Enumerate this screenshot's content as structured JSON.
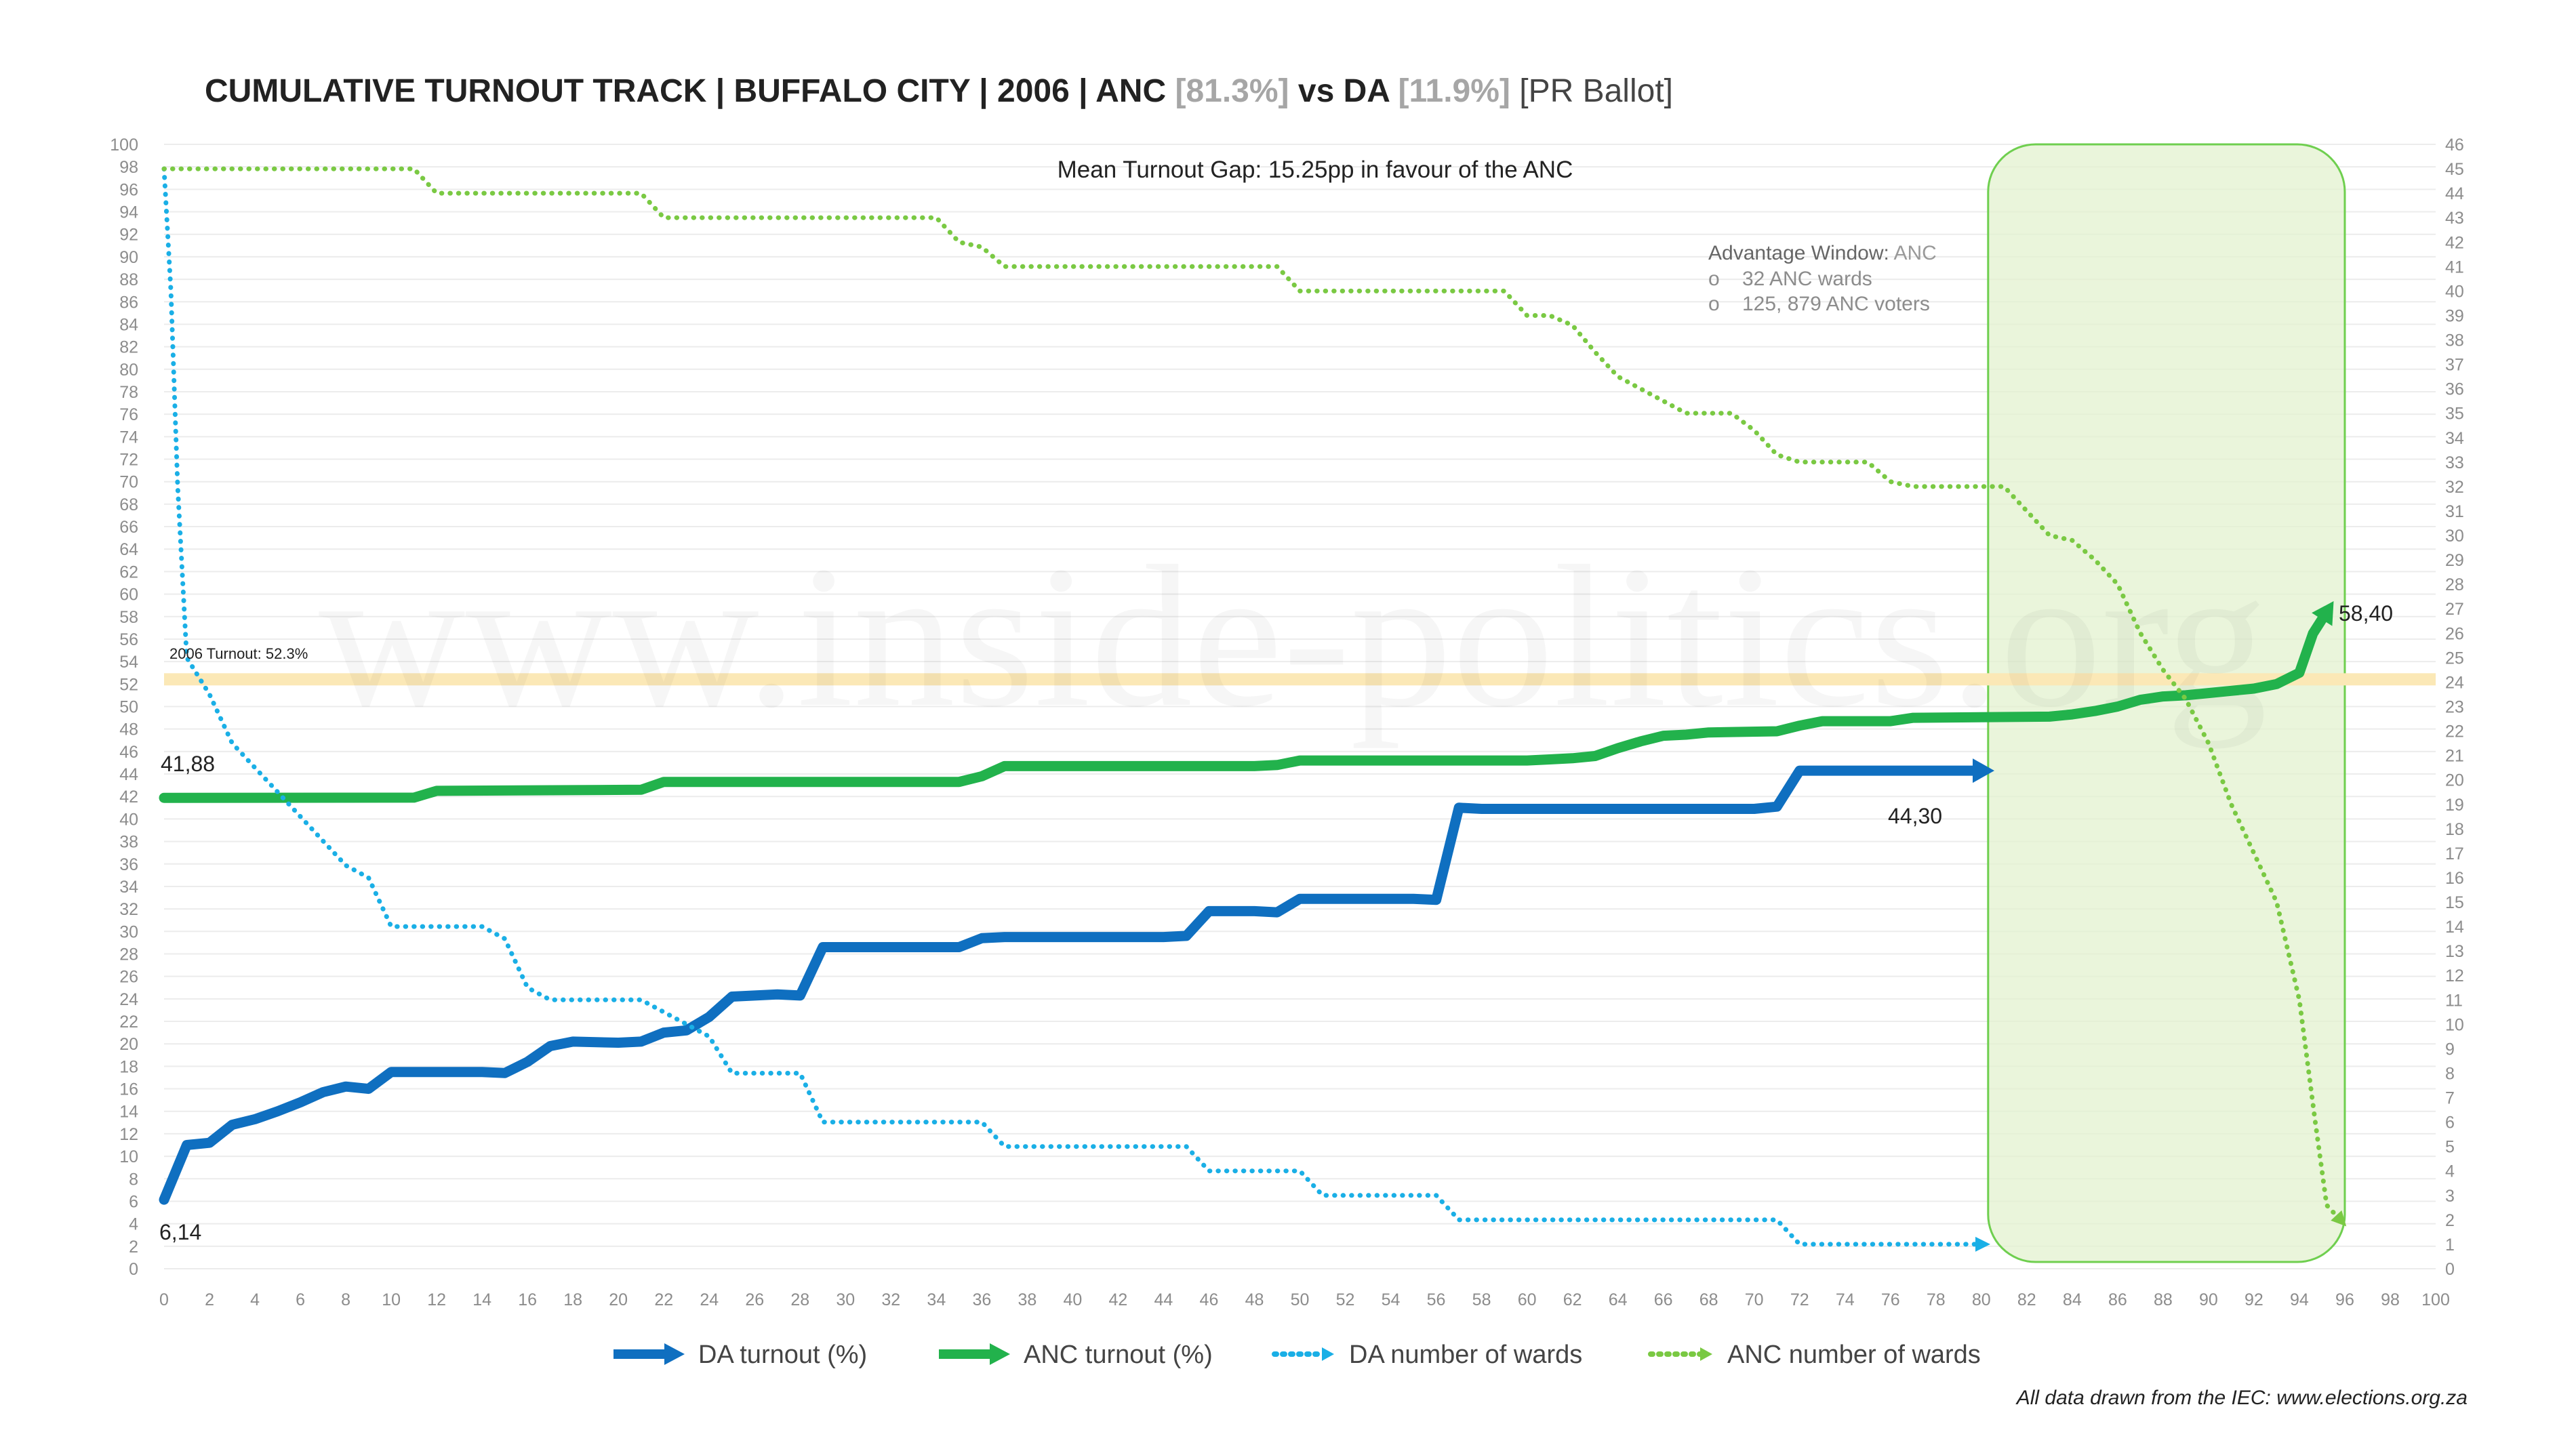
{
  "chart_data": {
    "type": "line",
    "title": {
      "main": "CUMULATIVE TURNOUT TRACK | BUFFALO CITY | 2006 | ANC ",
      "anc_pct": "[81.3%]",
      "vs": " vs DA ",
      "da_pct": "[11.9%]",
      "suffix": " [PR Ballot]"
    },
    "x_ticks": [
      0,
      2,
      4,
      6,
      8,
      10,
      12,
      14,
      16,
      18,
      20,
      22,
      24,
      26,
      28,
      30,
      32,
      34,
      36,
      38,
      40,
      42,
      44,
      46,
      48,
      50,
      52,
      54,
      56,
      58,
      60,
      62,
      64,
      66,
      68,
      70,
      72,
      74,
      76,
      78,
      80,
      82,
      84,
      86,
      88,
      90,
      92,
      94,
      96,
      98,
      100
    ],
    "xlim": [
      0,
      100
    ],
    "ylim_left": [
      0,
      100
    ],
    "ylim_right": [
      0,
      46
    ],
    "left_tick_step": 2,
    "right_tick_step": 1,
    "grid": true,
    "legend_position": "bottom",
    "subtitle": "Mean Turnout Gap: 15.25pp in favour of the ANC",
    "reference_line": {
      "value": 52.3,
      "label": "2006 Turnout: 52.3%"
    },
    "advantage_window": {
      "x_range": [
        80,
        96
      ],
      "heading": "Advantage Window:",
      "party": " ANC",
      "bullets": [
        "32 ANC wards",
        "125, 879 ANC voters"
      ]
    },
    "data_labels": {
      "da_start": "6,14",
      "da_end": "44,30",
      "anc_start": "41,88",
      "anc_end": "58,40"
    },
    "series": [
      {
        "name": "DA turnout (%)",
        "axis": "left",
        "style": "solid",
        "color": "#0f6fc0",
        "points": [
          [
            0,
            6.14
          ],
          [
            1,
            11
          ],
          [
            2,
            11.2
          ],
          [
            3,
            12.8
          ],
          [
            4,
            13.3
          ],
          [
            5,
            14
          ],
          [
            6,
            14.8
          ],
          [
            7,
            15.7
          ],
          [
            8,
            16.2
          ],
          [
            9,
            16
          ],
          [
            10,
            17.5
          ],
          [
            11,
            17.5
          ],
          [
            12,
            17.5
          ],
          [
            14,
            17.5
          ],
          [
            15,
            17.4
          ],
          [
            16,
            18.4
          ],
          [
            17,
            19.8
          ],
          [
            18,
            20.2
          ],
          [
            20,
            20.1
          ],
          [
            21,
            20.2
          ],
          [
            22,
            21
          ],
          [
            23,
            21.2
          ],
          [
            24,
            22.4
          ],
          [
            25,
            24.2
          ],
          [
            26,
            24.3
          ],
          [
            27,
            24.4
          ],
          [
            28,
            24.3
          ],
          [
            29,
            28.6
          ],
          [
            30,
            28.6
          ],
          [
            32,
            28.6
          ],
          [
            35,
            28.6
          ],
          [
            36,
            29.4
          ],
          [
            37,
            29.5
          ],
          [
            44,
            29.5
          ],
          [
            45,
            29.6
          ],
          [
            46,
            31.8
          ],
          [
            48,
            31.8
          ],
          [
            49,
            31.7
          ],
          [
            50,
            32.9
          ],
          [
            52,
            32.9
          ],
          [
            55,
            32.9
          ],
          [
            56,
            32.8
          ],
          [
            57,
            41
          ],
          [
            58,
            40.9
          ],
          [
            70,
            40.9
          ],
          [
            71,
            41.1
          ],
          [
            72,
            44.3
          ],
          [
            80,
            44.3
          ]
        ]
      },
      {
        "name": "ANC turnout (%)",
        "axis": "left",
        "style": "solid",
        "color": "#22b24c",
        "points": [
          [
            0,
            41.88
          ],
          [
            11,
            41.9
          ],
          [
            12,
            42.5
          ],
          [
            21,
            42.6
          ],
          [
            22,
            43.3
          ],
          [
            35,
            43.3
          ],
          [
            36,
            43.8
          ],
          [
            37,
            44.7
          ],
          [
            48,
            44.7
          ],
          [
            49,
            44.8
          ],
          [
            50,
            45.2
          ],
          [
            60,
            45.2
          ],
          [
            61,
            45.3
          ],
          [
            62,
            45.4
          ],
          [
            63,
            45.6
          ],
          [
            64,
            46.3
          ],
          [
            65,
            46.9
          ],
          [
            66,
            47.4
          ],
          [
            67,
            47.5
          ],
          [
            68,
            47.7
          ],
          [
            71,
            47.8
          ],
          [
            72,
            48.3
          ],
          [
            73,
            48.7
          ],
          [
            76,
            48.7
          ],
          [
            77,
            49
          ],
          [
            83,
            49.1
          ],
          [
            84,
            49.3
          ],
          [
            85,
            49.6
          ],
          [
            86,
            50
          ],
          [
            87,
            50.6
          ],
          [
            88,
            50.9
          ],
          [
            89,
            51
          ],
          [
            90,
            51.2
          ],
          [
            91,
            51.4
          ],
          [
            92,
            51.6
          ],
          [
            93,
            52
          ],
          [
            94,
            53
          ],
          [
            94.6,
            56.5
          ],
          [
            95.2,
            58.4
          ]
        ]
      },
      {
        "name": "DA number of wards",
        "axis": "right",
        "style": "dotted",
        "color": "#1aafe6",
        "points": [
          [
            0,
            45
          ],
          [
            0.3,
            40
          ],
          [
            0.6,
            32
          ],
          [
            1,
            25
          ],
          [
            2,
            23.5
          ],
          [
            3,
            21.5
          ],
          [
            4,
            20.5
          ],
          [
            5,
            19.5
          ],
          [
            6,
            18.5
          ],
          [
            7,
            17.5
          ],
          [
            8,
            16.5
          ],
          [
            9,
            16
          ],
          [
            10,
            14
          ],
          [
            12,
            14
          ],
          [
            14,
            14
          ],
          [
            15,
            13.5
          ],
          [
            16,
            11.5
          ],
          [
            17,
            11
          ],
          [
            21,
            11
          ],
          [
            22,
            10.5
          ],
          [
            23,
            10
          ],
          [
            24,
            9.5
          ],
          [
            25,
            8
          ],
          [
            28,
            8
          ],
          [
            29,
            6
          ],
          [
            36,
            6
          ],
          [
            37,
            5
          ],
          [
            45,
            5
          ],
          [
            46,
            4
          ],
          [
            50,
            4
          ],
          [
            51,
            3
          ],
          [
            56,
            3
          ],
          [
            57,
            2
          ],
          [
            70,
            2
          ],
          [
            71,
            2
          ],
          [
            72,
            1
          ],
          [
            80,
            1
          ]
        ]
      },
      {
        "name": "ANC number of wards",
        "axis": "right",
        "style": "dotted",
        "color": "#7ac943",
        "points": [
          [
            0,
            45
          ],
          [
            11,
            45
          ],
          [
            12,
            44
          ],
          [
            21,
            44
          ],
          [
            22,
            43
          ],
          [
            34,
            43
          ],
          [
            35,
            42
          ],
          [
            36,
            41.8
          ],
          [
            37,
            41
          ],
          [
            49,
            41
          ],
          [
            50,
            40
          ],
          [
            59,
            40
          ],
          [
            60,
            39
          ],
          [
            61,
            39
          ],
          [
            62,
            38.6
          ],
          [
            63,
            37.5
          ],
          [
            64,
            36.5
          ],
          [
            65,
            36
          ],
          [
            66,
            35.5
          ],
          [
            67,
            35
          ],
          [
            69,
            35
          ],
          [
            70,
            34.3
          ],
          [
            71,
            33.3
          ],
          [
            72,
            33
          ],
          [
            75,
            33
          ],
          [
            76,
            32.2
          ],
          [
            77,
            32
          ],
          [
            81,
            32
          ],
          [
            82,
            31
          ],
          [
            83,
            30
          ],
          [
            84,
            29.8
          ],
          [
            85,
            29
          ],
          [
            86,
            28
          ],
          [
            87,
            26
          ],
          [
            88,
            24.5
          ],
          [
            89,
            23.3
          ],
          [
            90,
            21.5
          ],
          [
            91,
            19
          ],
          [
            92,
            17
          ],
          [
            93,
            15
          ],
          [
            94,
            11
          ],
          [
            94.7,
            6
          ],
          [
            95.2,
            2.6
          ],
          [
            95.8,
            2
          ]
        ]
      }
    ]
  },
  "watermark": "www.inside-politics.org",
  "source_note": "All data drawn from the IEC: www.elections.org.za",
  "colors": {
    "anc_pct": "#a6a6a6",
    "da_pct": "#a6a6a6",
    "window_fill": "#e3f2cf",
    "window_stroke": "#6fcf4f",
    "reference_line": "#fbe8b6"
  }
}
